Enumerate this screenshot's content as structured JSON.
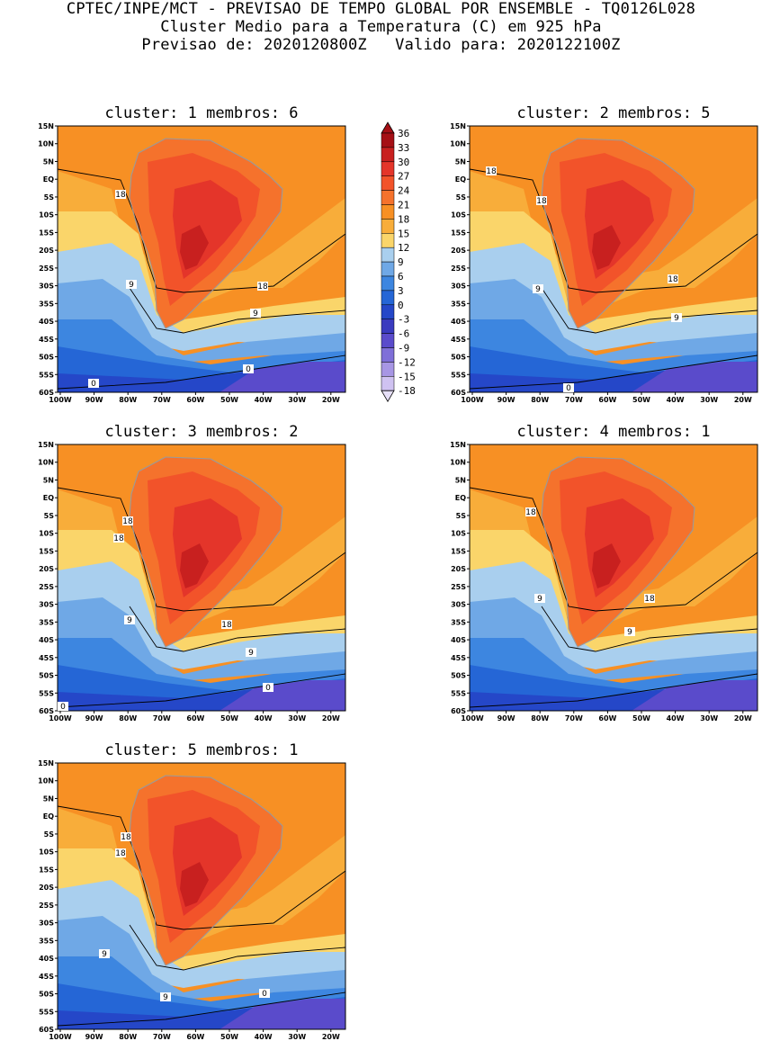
{
  "header": {
    "line1": "CPTEC/INPE/MCT - PREVISAO DE TEMPO GLOBAL POR ENSEMBLE - TQ0126L028",
    "line2": "Cluster Medio para a Temperatura (C) em 925 hPa",
    "line3": "Previsao de: 2020120800Z   Valido para: 2020122100Z"
  },
  "panels": [
    {
      "title": "cluster: 1  membros: 6",
      "labels": [
        "18",
        "9",
        "18",
        "9",
        "0",
        "0"
      ]
    },
    {
      "title": "cluster: 2  membros: 5",
      "labels": [
        "18",
        "18",
        "9",
        "18",
        "9",
        "0"
      ]
    },
    {
      "title": "cluster: 3  membros: 2",
      "labels": [
        "18",
        "18",
        "9",
        "18",
        "9",
        "0",
        "0"
      ]
    },
    {
      "title": "cluster: 4  membros: 1",
      "labels": [
        "18",
        "9",
        "18",
        "9"
      ]
    },
    {
      "title": "cluster: 5  membros: 1",
      "labels": [
        "18",
        "18",
        "9",
        "9",
        "0"
      ]
    }
  ],
  "axes": {
    "lat_labels": [
      "15N",
      "10N",
      "5N",
      "EQ",
      "5S",
      "10S",
      "15S",
      "20S",
      "25S",
      "30S",
      "35S",
      "40S",
      "45S",
      "50S",
      "55S",
      "60S"
    ],
    "lon_labels": [
      "100W",
      "90W",
      "80W",
      "70W",
      "60W",
      "50W",
      "40W",
      "30W",
      "20W"
    ]
  },
  "legend": {
    "labels": [
      "36",
      "33",
      "30",
      "27",
      "24",
      "21",
      "18",
      "15",
      "12",
      "9",
      "6",
      "3",
      "0",
      "-3",
      "-6",
      "-9",
      "-12",
      "-15",
      "-18"
    ],
    "colors": [
      "#a50f15",
      "#c8201f",
      "#e4352a",
      "#f2532a",
      "#f5722c",
      "#f79024",
      "#f8ad3a",
      "#fad56a",
      "#a9cfee",
      "#6fa8e6",
      "#3d86e0",
      "#2566d6",
      "#2547c8",
      "#3a3bbf",
      "#5a4bcb",
      "#7f6fd8",
      "#a796e4",
      "#cfc2f1"
    ]
  },
  "chart_data": {
    "type": "heatmap",
    "title": "Cluster Medio para a Temperatura (C) em 925 hPa",
    "x_range": [
      "100W",
      "15W"
    ],
    "y_range": [
      "60S",
      "15N"
    ],
    "units": "C",
    "contour_levels": [
      0,
      9,
      18
    ],
    "color_levels": [
      -18,
      -15,
      -12,
      -9,
      -6,
      -3,
      0,
      3,
      6,
      9,
      12,
      15,
      18,
      21,
      24,
      27,
      30,
      33,
      36
    ]
  }
}
